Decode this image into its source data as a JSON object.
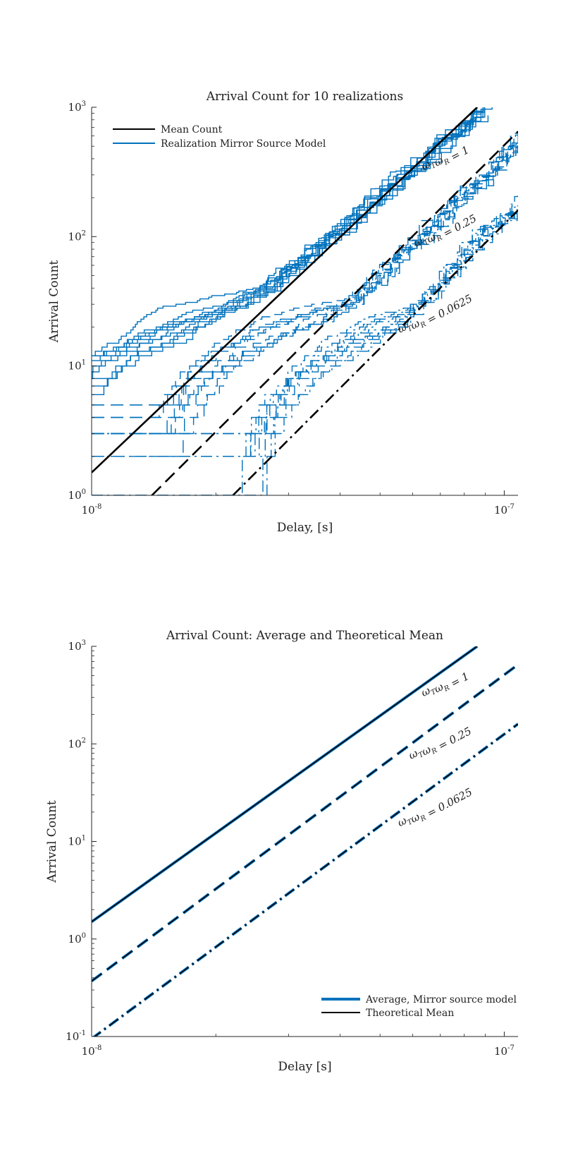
{
  "chart_data": [
    {
      "type": "line",
      "title": "Arrival Count for 10 realizations",
      "xlabel": "Delay, [s]",
      "ylabel": "Arrival Count",
      "xscale": "log",
      "yscale": "log",
      "xlim": [
        1e-08,
        1.08e-07
      ],
      "ylim": [
        1,
        1000
      ],
      "x_ticks": [
        "10^-8",
        "10^-7"
      ],
      "y_ticks": [
        "10^0",
        "10^1",
        "10^2",
        "10^3"
      ],
      "grid": false,
      "legend": {
        "placement": "top-left",
        "entries": [
          {
            "label": "Mean Count",
            "color": "#000000",
            "style": "solid"
          },
          {
            "label": "Realization Mirror Source Model",
            "color": "#0072BD",
            "style": "solid"
          }
        ]
      },
      "series": [
        {
          "group": "ωTωR = 1",
          "kind": "mean",
          "style": "solid",
          "color": "#000000",
          "x": [
            1e-08,
            8.6e-08
          ],
          "y": [
            1.5,
            1000
          ]
        },
        {
          "group": "ωTωR = 0.25",
          "kind": "mean",
          "style": "dashed",
          "color": "#000000",
          "x": [
            1.4e-08,
            1.08e-07
          ],
          "y": [
            1,
            650
          ]
        },
        {
          "group": "ωTωR = 0.0625",
          "kind": "mean",
          "style": "dashdot",
          "color": "#000000",
          "x": [
            2.2e-08,
            1.08e-07
          ],
          "y": [
            1,
            160
          ]
        },
        {
          "group": "ωTωR = 1",
          "kind": "realization",
          "style": "solid",
          "color": "#0072BD",
          "count": 10,
          "approx_x": [
            1e-08,
            1.3e-08,
            2e-08,
            3e-08,
            5e-08,
            8.6e-08
          ],
          "approx_y": [
            8,
            10,
            25,
            60,
            250,
            1000
          ]
        },
        {
          "group": "ωTωR = 0.25",
          "kind": "realization",
          "style": "dashed",
          "color": "#0072BD",
          "count": 10,
          "approx_x": [
            1.5e-08,
            2.5e-08,
            3.5e-08,
            5e-08,
            8e-08,
            1.08e-07
          ],
          "approx_y": [
            3,
            6,
            20,
            60,
            250,
            650
          ]
        },
        {
          "group": "ωTωR = 0.0625",
          "kind": "realization",
          "style": "dashdot",
          "color": "#0072BD",
          "count": 10,
          "approx_x": [
            2.4e-08,
            3.4e-08,
            4.5e-08,
            6e-08,
            8e-08,
            1.08e-07
          ],
          "approx_y": [
            2,
            5,
            12,
            30,
            90,
            200
          ]
        }
      ],
      "annotations": [
        {
          "text": "ωTωR = 1",
          "x": 7.2e-08,
          "y": 400
        },
        {
          "text": "ωTωR = 0.25",
          "x": 7.2e-08,
          "y": 110
        },
        {
          "text": "ωTωR = 0.0625",
          "x": 6.8e-08,
          "y": 25
        }
      ]
    },
    {
      "type": "line",
      "title": "Arrival Count: Average and Theoretical Mean",
      "xlabel": "Delay [s]",
      "ylabel": "Arrival Count",
      "xscale": "log",
      "yscale": "log",
      "xlim": [
        1e-08,
        1.08e-07
      ],
      "ylim": [
        0.1,
        1000
      ],
      "x_ticks": [
        "10^-8",
        "10^-7"
      ],
      "y_ticks": [
        "10^-1",
        "10^0",
        "10^1",
        "10^2",
        "10^3"
      ],
      "grid": false,
      "legend": {
        "placement": "bottom-right",
        "entries": [
          {
            "label": "Average, Mirror source model",
            "color": "#0072BD",
            "style": "solid"
          },
          {
            "label": "Theoretical Mean",
            "color": "#000000",
            "style": "solid"
          }
        ]
      },
      "series": [
        {
          "group": "ωTωR = 1",
          "kind": "average",
          "style": "solid",
          "color": "#0072BD",
          "x": [
            1e-08,
            8.6e-08
          ],
          "y": [
            1.5,
            1000
          ]
        },
        {
          "group": "ωTωR = 0.25",
          "kind": "average",
          "style": "dashed",
          "color": "#0072BD",
          "x": [
            1e-08,
            1.08e-07
          ],
          "y": [
            0.37,
            650
          ]
        },
        {
          "group": "ωTωR = 0.0625",
          "kind": "average",
          "style": "dashdot",
          "color": "#0072BD",
          "x": [
            1e-08,
            1.08e-07
          ],
          "y": [
            0.095,
            160
          ]
        },
        {
          "group": "ωTωR = 1",
          "kind": "theoretical",
          "style": "solid",
          "color": "#000000",
          "x": [
            1e-08,
            8.6e-08
          ],
          "y": [
            1.5,
            1000
          ]
        },
        {
          "group": "ωTωR = 0.25",
          "kind": "theoretical",
          "style": "dashed",
          "color": "#000000",
          "x": [
            1e-08,
            1.08e-07
          ],
          "y": [
            0.37,
            650
          ]
        },
        {
          "group": "ωTωR = 0.0625",
          "kind": "theoretical",
          "style": "dashdot",
          "color": "#000000",
          "x": [
            1e-08,
            1.08e-07
          ],
          "y": [
            0.095,
            160
          ]
        }
      ],
      "annotations": [
        {
          "text": "ωTωR = 1",
          "x": 7.2e-08,
          "y": 400
        },
        {
          "text": "ωTωR = 0.25",
          "x": 7e-08,
          "y": 100
        },
        {
          "text": "ωTωR = 0.0625",
          "x": 6.8e-08,
          "y": 22
        }
      ]
    }
  ]
}
